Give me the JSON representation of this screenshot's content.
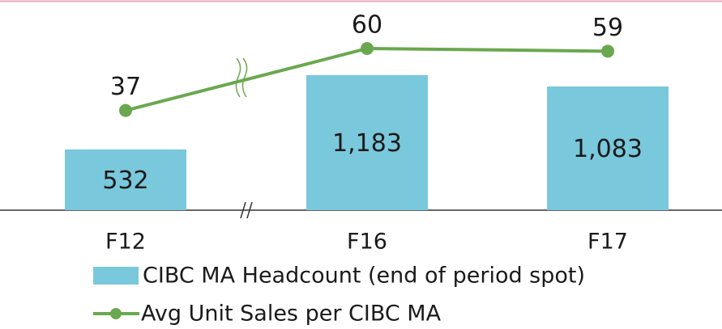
{
  "chart_data": {
    "type": "bar+line",
    "categories": [
      "F12",
      "F16",
      "F17"
    ],
    "series": [
      {
        "name": "CIBC MA Headcount (end of period spot)",
        "type": "bar",
        "color": "#7ac8db",
        "values": [
          532,
          1183,
          1083
        ],
        "value_labels": [
          "532",
          "1,183",
          "1,083"
        ]
      },
      {
        "name": "Avg Unit Sales per CIBC MA",
        "type": "line",
        "color": "#6aa84f",
        "axis": "y2",
        "values": [
          37,
          60,
          59
        ]
      }
    ],
    "ylim": [
      0,
      1840
    ],
    "y2lim": [
      0,
      78
    ]
  }
}
